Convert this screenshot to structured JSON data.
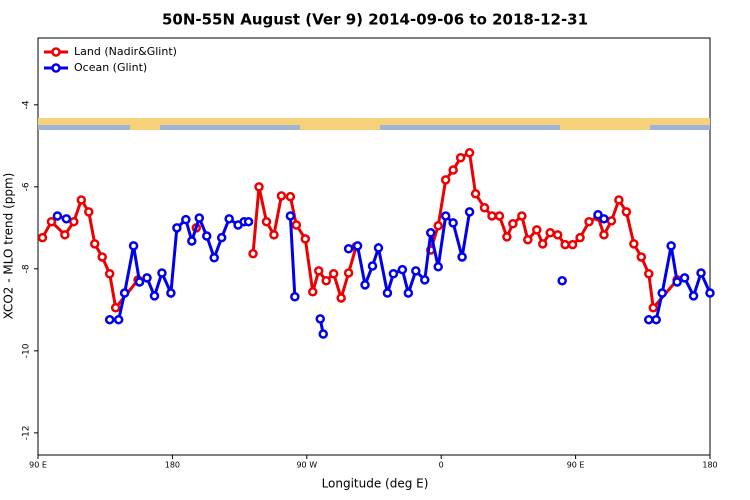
{
  "chart_data": {
    "type": "line",
    "title": "50N-55N August (Ver 9)   2014-09-06 to 2018-12-31",
    "x_label": "Longitude (deg E)",
    "y_label": "XCO2 - MLO trend (ppm)",
    "xlim": [
      90,
      540
    ],
    "xticks": [
      {
        "value": 90,
        "label": "90 E"
      },
      {
        "value": 180,
        "label": "180"
      },
      {
        "value": 270,
        "label": "90 W"
      },
      {
        "value": 360,
        "label": "0"
      },
      {
        "value": 450,
        "label": "90 E"
      },
      {
        "value": 540,
        "label": "180"
      }
    ],
    "ylim": [
      -12.54,
      -2.37
    ],
    "yticks": [
      -4,
      -6,
      -8,
      -10,
      -12
    ],
    "legend": "top-left",
    "series": [
      {
        "name": "Land (Nadir&Glint)",
        "color": "#ee0000",
        "x": [
          93,
          99,
          108,
          114,
          119,
          124,
          128,
          133,
          138,
          142,
          157,
          null,
          196,
          null,
          234,
          238,
          243,
          248,
          253,
          259,
          263,
          269,
          274,
          278,
          283,
          288,
          293,
          298,
          303,
          null,
          353,
          358,
          363,
          368,
          373,
          379,
          383,
          389,
          394,
          399,
          404,
          408,
          414,
          418,
          424,
          428,
          433,
          438,
          443,
          448,
          453,
          459,
          465,
          469,
          474,
          479,
          484,
          489,
          494,
          499,
          502,
          518
        ],
        "values": [
          -7.24,
          -6.85,
          -7.17,
          -6.85,
          -6.32,
          -6.61,
          -7.39,
          -7.71,
          -8.12,
          -8.95,
          -8.27,
          null,
          -7.0,
          null,
          -7.63,
          -6.0,
          -6.85,
          -7.17,
          -6.22,
          -6.24,
          -6.93,
          -7.27,
          -8.56,
          -8.05,
          -8.29,
          -8.12,
          -8.71,
          -8.1,
          -7.46,
          null,
          -7.54,
          -6.95,
          -5.83,
          -5.59,
          -5.29,
          -5.17,
          -6.17,
          -6.51,
          -6.71,
          -6.71,
          -7.22,
          -6.9,
          -6.71,
          -7.29,
          -7.05,
          -7.39,
          -7.12,
          -7.17,
          -7.41,
          -7.41,
          -7.24,
          -6.85,
          -6.73,
          -7.17,
          -6.83,
          -6.32,
          -6.61,
          -7.39,
          -7.71,
          -8.12,
          -8.95,
          -8.27
        ]
      },
      {
        "name": "Ocean (Glint)",
        "color": "#0000ee",
        "x": [
          103,
          109,
          null,
          138,
          144,
          148,
          154,
          158,
          163,
          168,
          173,
          179,
          183,
          189,
          193,
          198,
          203,
          208,
          213,
          218,
          224,
          228,
          231,
          null,
          259,
          262,
          null,
          279,
          281,
          null,
          298,
          304,
          309,
          314,
          318,
          324,
          328,
          334,
          338,
          343,
          349,
          353,
          358,
          363,
          368,
          374,
          379,
          null,
          441,
          null,
          465,
          469,
          null,
          499,
          504,
          508,
          514,
          518,
          523,
          529,
          534,
          540
        ],
        "values": [
          -6.71,
          -6.78,
          null,
          -9.24,
          -9.24,
          -8.59,
          -7.44,
          -8.32,
          -8.22,
          -8.66,
          -8.1,
          -8.59,
          -7.0,
          -6.8,
          -7.32,
          -6.76,
          -7.2,
          -7.73,
          -7.24,
          -6.78,
          -6.93,
          -6.85,
          -6.85,
          null,
          -6.71,
          -8.68,
          null,
          -9.22,
          -9.59,
          null,
          -7.51,
          -7.44,
          -8.39,
          -7.93,
          -7.49,
          -8.59,
          -8.12,
          -8.02,
          -8.59,
          -8.05,
          -8.27,
          -7.12,
          -7.95,
          -6.71,
          -6.88,
          -7.71,
          -6.61,
          null,
          -8.29,
          null,
          -6.68,
          -6.78,
          null,
          -9.24,
          -9.24,
          -8.59,
          -7.44,
          -8.32,
          -8.22,
          -8.66,
          -8.1,
          -8.59
        ]
      }
    ]
  }
}
